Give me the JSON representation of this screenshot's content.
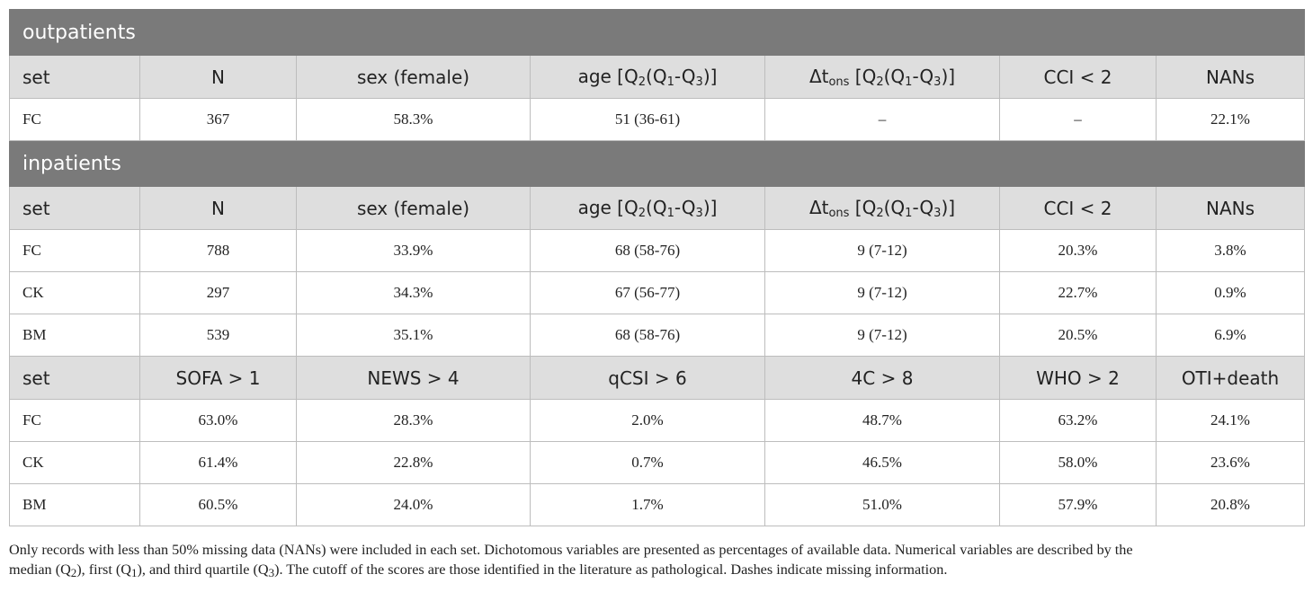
{
  "outpatients": {
    "section_title": "outpatients",
    "headers": {
      "set": "set",
      "n": "N",
      "sex": "sex (female)",
      "age_prefix": "age [Q",
      "age_q2": "2",
      "age_mid1": "(Q",
      "age_q1": "1",
      "age_dash": "-Q",
      "age_q3": "3",
      "age_end": ")]",
      "dt_prefix": "Δt",
      "dt_sub": "ons",
      "dt_mid": " [Q",
      "dt_q2": "2",
      "dt_mid1": "(Q",
      "dt_q1": "1",
      "dt_dash": "-Q",
      "dt_q3": "3",
      "dt_end": ")]",
      "cci": "CCI < 2",
      "nans": "NANs"
    },
    "rows": [
      {
        "set": "FC",
        "n": "367",
        "sex": "58.3%",
        "age": "51 (36-61)",
        "dt": "–",
        "cci": "–",
        "nans": "22.1%"
      }
    ]
  },
  "inpatients": {
    "section_title": "inpatients",
    "headers": {
      "set": "set",
      "n": "N",
      "sex": "sex (female)",
      "age_prefix": "age [Q",
      "age_q2": "2",
      "age_mid1": "(Q",
      "age_q1": "1",
      "age_dash": "-Q",
      "age_q3": "3",
      "age_end": ")]",
      "dt_prefix": "Δt",
      "dt_sub": "ons",
      "dt_mid": " [Q",
      "dt_q2": "2",
      "dt_mid1": "(Q",
      "dt_q1": "1",
      "dt_dash": "-Q",
      "dt_q3": "3",
      "dt_end": ")]",
      "cci": "CCI < 2",
      "nans": "NANs"
    },
    "rows": [
      {
        "set": "FC",
        "n": "788",
        "sex": "33.9%",
        "age": "68 (58-76)",
        "dt": "9 (7-12)",
        "cci": "20.3%",
        "nans": "3.8%"
      },
      {
        "set": "CK",
        "n": "297",
        "sex": "34.3%",
        "age": "67 (56-77)",
        "dt": "9 (7-12)",
        "cci": "22.7%",
        "nans": "0.9%"
      },
      {
        "set": "BM",
        "n": "539",
        "sex": "35.1%",
        "age": "68 (58-76)",
        "dt": "9 (7-12)",
        "cci": "20.5%",
        "nans": "6.9%"
      }
    ],
    "score_headers": {
      "set": "set",
      "sofa": "SOFA > 1",
      "news": "NEWS > 4",
      "qcsi": "qCSI > 6",
      "fourc": "4C > 8",
      "who": "WHO > 2",
      "oti": "OTI+death"
    },
    "score_rows": [
      {
        "set": "FC",
        "sofa": "63.0%",
        "news": "28.3%",
        "qcsi": "2.0%",
        "fourc": "48.7%",
        "who": "63.2%",
        "oti": "24.1%"
      },
      {
        "set": "CK",
        "sofa": "61.4%",
        "news": "22.8%",
        "qcsi": "0.7%",
        "fourc": "46.5%",
        "who": "58.0%",
        "oti": "23.6%"
      },
      {
        "set": "BM",
        "sofa": "60.5%",
        "news": "24.0%",
        "qcsi": "1.7%",
        "fourc": "51.0%",
        "who": "57.9%",
        "oti": "20.8%"
      }
    ]
  },
  "footnote": {
    "line1": "Only records with less than 50% missing data (NANs) were included in each set. Dichotomous variables are presented as percentages of available data. Numerical variables are described by the",
    "line2_a": "median (Q",
    "line2_q2": "2",
    "line2_b": "), first (Q",
    "line2_q1": "1",
    "line2_c": "), and third quartile (Q",
    "line2_q3": "3",
    "line2_d": "). The cutoff of the scores are those identified in the literature as pathological. Dashes indicate missing information."
  },
  "colors": {
    "section_bg": "#7a7a7a",
    "header_bg": "#dedede",
    "border": "#bdbdbd"
  }
}
